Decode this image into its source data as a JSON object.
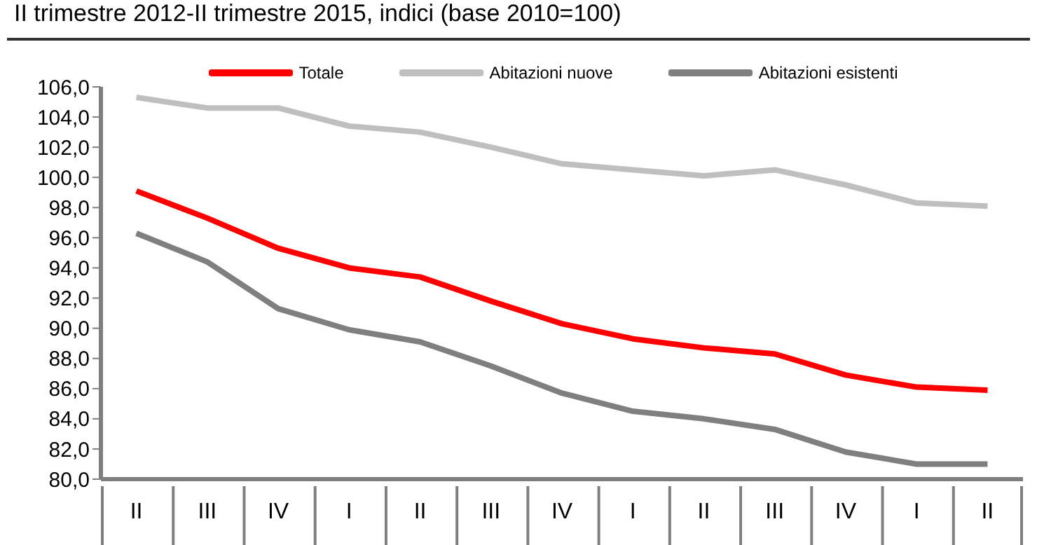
{
  "chart_data": {
    "type": "line",
    "title": "II trimestre 2012-II trimestre 2015, indici (base 2010=100)",
    "categories": [
      "II",
      "III",
      "IV",
      "I",
      "II",
      "III",
      "IV",
      "I",
      "II",
      "III",
      "IV",
      "I",
      "II"
    ],
    "series": [
      {
        "name": "Totale",
        "color": "#ff0000",
        "values": [
          99.1,
          97.3,
          95.3,
          94.0,
          93.4,
          91.8,
          90.3,
          89.3,
          88.7,
          88.3,
          86.9,
          86.1,
          85.9
        ]
      },
      {
        "name": "Abitazioni nuove",
        "color": "#bfbfbf",
        "values": [
          105.3,
          104.6,
          104.6,
          103.4,
          103.0,
          102.0,
          100.9,
          100.5,
          100.1,
          100.5,
          99.5,
          98.3,
          98.1
        ]
      },
      {
        "name": "Abitazioni esistenti",
        "color": "#7f7f7f",
        "values": [
          96.3,
          94.4,
          91.3,
          89.9,
          89.1,
          87.5,
          85.7,
          84.5,
          84.0,
          83.3,
          81.8,
          81.0,
          81.0
        ]
      }
    ],
    "ylim": [
      80,
      106
    ],
    "yticks": [
      {
        "value": 80,
        "label": "80,0"
      },
      {
        "value": 82,
        "label": "82,0"
      },
      {
        "value": 84,
        "label": "84,0"
      },
      {
        "value": 86,
        "label": "86,0"
      },
      {
        "value": 88,
        "label": "88,0"
      },
      {
        "value": 90,
        "label": "90,0"
      },
      {
        "value": 92,
        "label": "92,0"
      },
      {
        "value": 94,
        "label": "94,0"
      },
      {
        "value": 96,
        "label": "96,0"
      },
      {
        "value": 98,
        "label": "98,0"
      },
      {
        "value": 100,
        "label": "100,0"
      },
      {
        "value": 102,
        "label": "102,0"
      },
      {
        "value": 104,
        "label": "104,0"
      },
      {
        "value": 106,
        "label": "106,0"
      }
    ],
    "grid": false,
    "legend": "top",
    "marker": "none",
    "line_style": "solid"
  }
}
